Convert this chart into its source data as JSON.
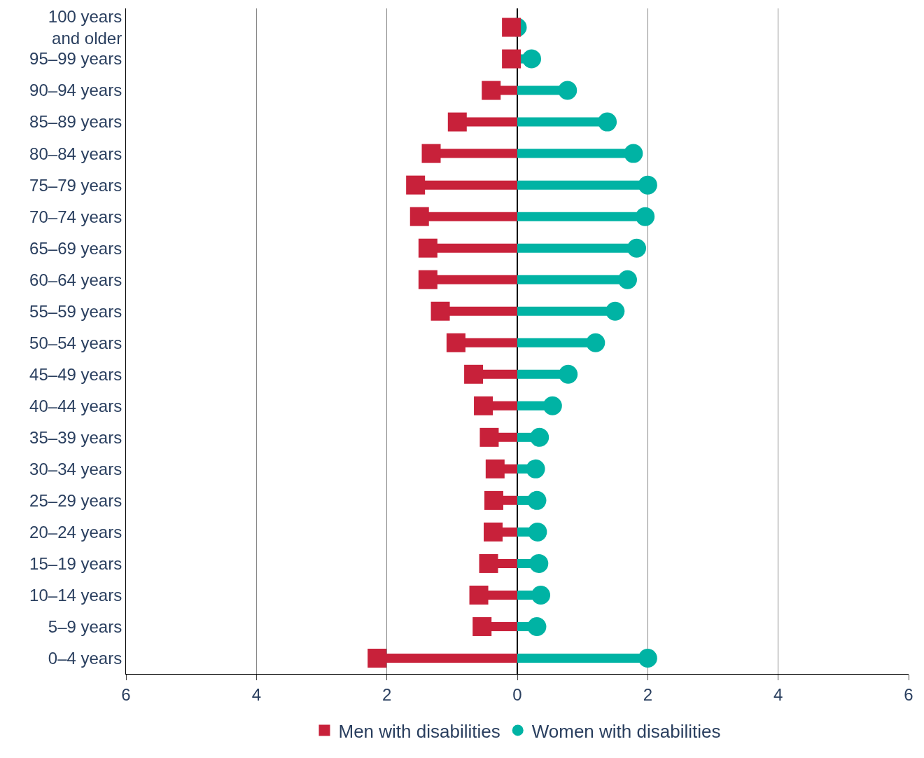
{
  "chart_data": {
    "type": "lollipop",
    "orientation": "horizontal",
    "categories": [
      "100 years and older",
      "95–99 years",
      "90–94 years",
      "85–89 years",
      "80–84 years",
      "75–79 years",
      "70–74 years",
      "65–69 years",
      "60–64 years",
      "55–59 years",
      "50–54 years",
      "45–49 years",
      "40–44 years",
      "35–39 years",
      "30–34 years",
      "25–29 years",
      "20–24 years",
      "15–19 years",
      "10–14 years",
      "5–9 years",
      "0–4 years"
    ],
    "series": [
      {
        "name": "Men with disabilities",
        "color": "#c8213a",
        "marker": "square",
        "values": [
          -0.09,
          -0.09,
          -0.4,
          -0.92,
          -1.32,
          -1.56,
          -1.5,
          -1.37,
          -1.37,
          -1.18,
          -0.94,
          -0.67,
          -0.52,
          -0.43,
          -0.34,
          -0.36,
          -0.37,
          -0.44,
          -0.59,
          -0.54,
          -2.15
        ]
      },
      {
        "name": "Women with disabilities",
        "color": "#00b3a4",
        "marker": "circle",
        "values": [
          0.0,
          0.22,
          0.77,
          1.38,
          1.78,
          2.0,
          1.96,
          1.83,
          1.69,
          1.5,
          1.2,
          0.78,
          0.54,
          0.34,
          0.28,
          0.3,
          0.31,
          0.33,
          0.36,
          0.3,
          2.0
        ]
      }
    ],
    "xlim": [
      -6,
      6
    ],
    "xticks": [
      {
        "value": -6,
        "label": "6"
      },
      {
        "value": -4,
        "label": "4"
      },
      {
        "value": -2,
        "label": "2"
      },
      0,
      2,
      4,
      6
    ],
    "grid": "x",
    "legend": "bottom"
  }
}
